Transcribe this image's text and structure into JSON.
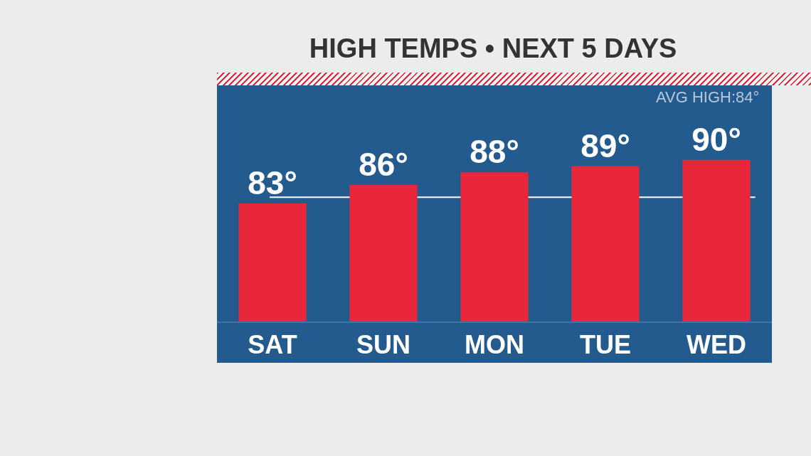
{
  "chart_data": {
    "type": "bar",
    "title": "HIGH TEMPS • NEXT 5 DAYS",
    "categories": [
      "SAT",
      "SUN",
      "MON",
      "TUE",
      "WED"
    ],
    "values": [
      83,
      86,
      88,
      89,
      90
    ],
    "value_labels": [
      "83°",
      "86°",
      "88°",
      "89°",
      "90°"
    ],
    "color": "#e8283a",
    "ylim": [
      64,
      102
    ],
    "tick_labels": "x",
    "grid": false,
    "annotations": [
      "AVG HIGH:84°"
    ],
    "ref_lines": [
      {
        "axis": "y",
        "value": 84,
        "color": "#ffffff"
      }
    ]
  }
}
